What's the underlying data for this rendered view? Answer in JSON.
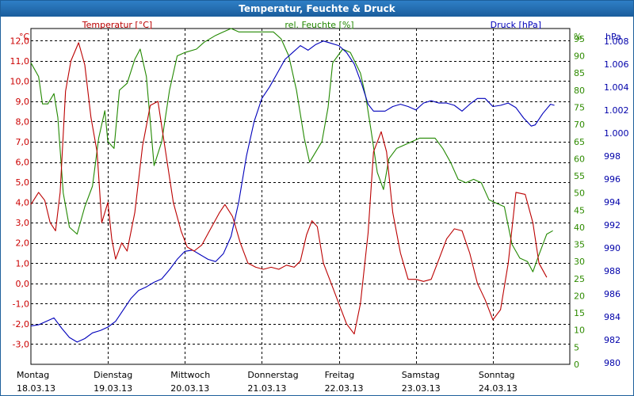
{
  "window": {
    "title": "Temperatur, Feuchte & Druck"
  },
  "chart_data": {
    "type": "line",
    "title": "Temperatur, Feuchte & Druck",
    "x_categories": [
      {
        "day": "Montag",
        "date": "18.03.13"
      },
      {
        "day": "Dienstag",
        "date": "19.03.13"
      },
      {
        "day": "Mittwoch",
        "date": "20.03.13"
      },
      {
        "day": "Donnerstag",
        "date": "21.03.13"
      },
      {
        "day": "Freitag",
        "date": "22.03.13"
      },
      {
        "day": "Samstag",
        "date": "23.03.13"
      },
      {
        "day": "Sonntag",
        "date": "24.03.13"
      }
    ],
    "x_range_days": [
      0,
      7
    ],
    "grid": true,
    "axes": {
      "left": {
        "unit": "°C",
        "ylim": [
          -4,
          12.6
        ],
        "ticks": [
          "-3,0",
          "-2,0",
          "-1,0",
          "0,0",
          "1,0",
          "2,0",
          "3,0",
          "4,0",
          "5,0",
          "6,0",
          "7,0",
          "8,0",
          "9,0",
          "10,0",
          "11,0",
          "12,0"
        ],
        "color": "#cc0000"
      },
      "middle": {
        "unit": "%",
        "ylim": [
          0,
          98.0
        ],
        "ticks": [
          "0",
          "5",
          "10",
          "15",
          "20",
          "25",
          "30",
          "35",
          "40",
          "45",
          "50",
          "55",
          "60",
          "65",
          "70",
          "75",
          "80",
          "85",
          "90",
          "95"
        ],
        "color": "#2e8b00"
      },
      "right": {
        "unit": "hPa",
        "ylim": [
          979.86,
          1009.09
        ],
        "ticks": [
          "980",
          "982",
          "984",
          "986",
          "988",
          "990",
          "992",
          "994",
          "996",
          "998",
          "1.000",
          "1.002",
          "1.004",
          "1.006",
          "1.008"
        ],
        "color": "#0000aa"
      }
    },
    "series": [
      {
        "name": "Temperatur [°C]",
        "axis": "left",
        "color": "#bb0000",
        "points": [
          [
            0,
            3.9
          ],
          [
            0.1,
            4.5
          ],
          [
            0.18,
            4.1
          ],
          [
            0.25,
            3.0
          ],
          [
            0.32,
            2.6
          ],
          [
            0.38,
            4.5
          ],
          [
            0.45,
            9.5
          ],
          [
            0.52,
            11.0
          ],
          [
            0.62,
            11.9
          ],
          [
            0.7,
            10.8
          ],
          [
            0.78,
            8.2
          ],
          [
            0.86,
            6.5
          ],
          [
            0.92,
            3.0
          ],
          [
            1.0,
            4.0
          ],
          [
            1.05,
            2.2
          ],
          [
            1.1,
            1.2
          ],
          [
            1.18,
            2.0
          ],
          [
            1.25,
            1.6
          ],
          [
            1.35,
            3.5
          ],
          [
            1.45,
            6.8
          ],
          [
            1.55,
            8.8
          ],
          [
            1.65,
            9.0
          ],
          [
            1.75,
            6.5
          ],
          [
            1.85,
            4.0
          ],
          [
            1.95,
            2.6
          ],
          [
            2.03,
            1.8
          ],
          [
            2.12,
            1.6
          ],
          [
            2.22,
            1.9
          ],
          [
            2.32,
            2.6
          ],
          [
            2.45,
            3.5
          ],
          [
            2.52,
            3.9
          ],
          [
            2.62,
            3.3
          ],
          [
            2.72,
            2.0
          ],
          [
            2.82,
            1.0
          ],
          [
            2.92,
            0.8
          ],
          [
            3.02,
            0.7
          ],
          [
            3.12,
            0.8
          ],
          [
            3.22,
            0.7
          ],
          [
            3.32,
            0.9
          ],
          [
            3.42,
            0.8
          ],
          [
            3.5,
            1.1
          ],
          [
            3.58,
            2.4
          ],
          [
            3.65,
            3.1
          ],
          [
            3.72,
            2.8
          ],
          [
            3.8,
            1.0
          ],
          [
            3.9,
            0.0
          ],
          [
            4.0,
            -1.0
          ],
          [
            4.1,
            -2.0
          ],
          [
            4.2,
            -2.5
          ],
          [
            4.28,
            -1.0
          ],
          [
            4.38,
            2.5
          ],
          [
            4.45,
            6.5
          ],
          [
            4.55,
            7.5
          ],
          [
            4.62,
            6.5
          ],
          [
            4.7,
            3.5
          ],
          [
            4.8,
            1.5
          ],
          [
            4.9,
            0.2
          ],
          [
            5.0,
            0.2
          ],
          [
            5.1,
            0.1
          ],
          [
            5.2,
            0.2
          ],
          [
            5.3,
            1.2
          ],
          [
            5.4,
            2.2
          ],
          [
            5.5,
            2.7
          ],
          [
            5.6,
            2.6
          ],
          [
            5.7,
            1.5
          ],
          [
            5.8,
            0.0
          ],
          [
            5.9,
            -0.8
          ],
          [
            6.0,
            -1.8
          ],
          [
            6.1,
            -1.3
          ],
          [
            6.2,
            1.0
          ],
          [
            6.3,
            4.5
          ],
          [
            6.42,
            4.4
          ],
          [
            6.52,
            3.0
          ],
          [
            6.6,
            1.0
          ],
          [
            6.7,
            0.3
          ]
        ]
      },
      {
        "name": "rel. Feuchte [%]",
        "axis": "middle",
        "color": "#228800",
        "points": [
          [
            0,
            88
          ],
          [
            0.1,
            84
          ],
          [
            0.15,
            76
          ],
          [
            0.22,
            76
          ],
          [
            0.3,
            79
          ],
          [
            0.35,
            72
          ],
          [
            0.42,
            50
          ],
          [
            0.5,
            40
          ],
          [
            0.6,
            38
          ],
          [
            0.7,
            46
          ],
          [
            0.8,
            52
          ],
          [
            0.88,
            66
          ],
          [
            0.96,
            74
          ],
          [
            1.0,
            65
          ],
          [
            1.08,
            63
          ],
          [
            1.15,
            80
          ],
          [
            1.25,
            82
          ],
          [
            1.35,
            89
          ],
          [
            1.42,
            92
          ],
          [
            1.5,
            84
          ],
          [
            1.6,
            58
          ],
          [
            1.7,
            65
          ],
          [
            1.8,
            80
          ],
          [
            1.9,
            90
          ],
          [
            2.0,
            91
          ],
          [
            2.15,
            92
          ],
          [
            2.25,
            94
          ],
          [
            2.4,
            96
          ],
          [
            2.5,
            97
          ],
          [
            2.6,
            98
          ],
          [
            2.7,
            97
          ],
          [
            2.85,
            97
          ],
          [
            3.0,
            97
          ],
          [
            3.15,
            97
          ],
          [
            3.25,
            95
          ],
          [
            3.35,
            90
          ],
          [
            3.45,
            80
          ],
          [
            3.55,
            66
          ],
          [
            3.62,
            59
          ],
          [
            3.7,
            62
          ],
          [
            3.78,
            65
          ],
          [
            3.86,
            75
          ],
          [
            3.92,
            88
          ],
          [
            4.05,
            92
          ],
          [
            4.15,
            91
          ],
          [
            4.28,
            85
          ],
          [
            4.35,
            78
          ],
          [
            4.42,
            68
          ],
          [
            4.5,
            56
          ],
          [
            4.58,
            51
          ],
          [
            4.65,
            60
          ],
          [
            4.75,
            63
          ],
          [
            4.85,
            64
          ],
          [
            4.95,
            65
          ],
          [
            5.05,
            66
          ],
          [
            5.15,
            66
          ],
          [
            5.25,
            66
          ],
          [
            5.35,
            63
          ],
          [
            5.45,
            59
          ],
          [
            5.55,
            54
          ],
          [
            5.65,
            53
          ],
          [
            5.75,
            54
          ],
          [
            5.85,
            53
          ],
          [
            5.95,
            48
          ],
          [
            6.05,
            47
          ],
          [
            6.15,
            46
          ],
          [
            6.25,
            35
          ],
          [
            6.35,
            31
          ],
          [
            6.45,
            30
          ],
          [
            6.52,
            27
          ],
          [
            6.6,
            32
          ],
          [
            6.7,
            38
          ],
          [
            6.78,
            39
          ]
        ]
      },
      {
        "name": "Druck [hPa]",
        "axis": "right",
        "color": "#0000bb",
        "points": [
          [
            0,
            983.2
          ],
          [
            0.1,
            983.3
          ],
          [
            0.2,
            983.6
          ],
          [
            0.3,
            983.9
          ],
          [
            0.4,
            983.0
          ],
          [
            0.5,
            982.2
          ],
          [
            0.6,
            981.8
          ],
          [
            0.7,
            982.1
          ],
          [
            0.8,
            982.6
          ],
          [
            0.9,
            982.8
          ],
          [
            1.0,
            983.1
          ],
          [
            1.1,
            983.6
          ],
          [
            1.2,
            984.6
          ],
          [
            1.3,
            985.6
          ],
          [
            1.4,
            986.3
          ],
          [
            1.5,
            986.6
          ],
          [
            1.6,
            987.0
          ],
          [
            1.7,
            987.3
          ],
          [
            1.8,
            988.1
          ],
          [
            1.9,
            989.0
          ],
          [
            2.0,
            989.7
          ],
          [
            2.1,
            989.8
          ],
          [
            2.2,
            989.4
          ],
          [
            2.3,
            989.0
          ],
          [
            2.4,
            988.8
          ],
          [
            2.5,
            989.5
          ],
          [
            2.6,
            991.0
          ],
          [
            2.7,
            994.0
          ],
          [
            2.8,
            998.0
          ],
          [
            2.9,
            1001.0
          ],
          [
            3.0,
            1003.0
          ],
          [
            3.1,
            1004.0
          ],
          [
            3.2,
            1005.2
          ],
          [
            3.3,
            1006.4
          ],
          [
            3.4,
            1007.0
          ],
          [
            3.5,
            1007.6
          ],
          [
            3.6,
            1007.2
          ],
          [
            3.7,
            1007.7
          ],
          [
            3.8,
            1008.0
          ],
          [
            3.9,
            1007.8
          ],
          [
            4.0,
            1007.6
          ],
          [
            4.1,
            1007.0
          ],
          [
            4.2,
            1006.0
          ],
          [
            4.3,
            1004.2
          ],
          [
            4.38,
            1002.5
          ],
          [
            4.45,
            1001.9
          ],
          [
            4.6,
            1001.9
          ],
          [
            4.7,
            1002.3
          ],
          [
            4.8,
            1002.5
          ],
          [
            4.9,
            1002.3
          ],
          [
            5.0,
            1002.0
          ],
          [
            5.1,
            1002.6
          ],
          [
            5.2,
            1002.8
          ],
          [
            5.3,
            1002.6
          ],
          [
            5.4,
            1002.6
          ],
          [
            5.5,
            1002.4
          ],
          [
            5.6,
            1001.9
          ],
          [
            5.7,
            1002.5
          ],
          [
            5.8,
            1003.0
          ],
          [
            5.9,
            1003.0
          ],
          [
            6.0,
            1002.3
          ],
          [
            6.1,
            1002.4
          ],
          [
            6.2,
            1002.6
          ],
          [
            6.3,
            1002.2
          ],
          [
            6.4,
            1001.3
          ],
          [
            6.5,
            1000.6
          ],
          [
            6.55,
            1000.7
          ],
          [
            6.65,
            1001.7
          ],
          [
            6.75,
            1002.5
          ],
          [
            6.8,
            1002.4
          ]
        ]
      }
    ]
  }
}
